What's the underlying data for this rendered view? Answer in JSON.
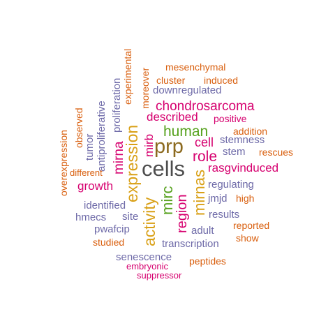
{
  "colors": {
    "gray": "#4d4d4d",
    "green": "#56a11d",
    "gold": "#d9a016",
    "brown": "#8c6a1f",
    "magenta": "#d6006f",
    "purple": "#6e6aa8",
    "orange": "#d95f0e"
  },
  "words": {
    "cells": "cells",
    "prp": "prp",
    "human": "human",
    "expression": "expression",
    "mirnas": "mirnas",
    "activity": "activity",
    "mirc": "mirc",
    "region": "region",
    "role": "role",
    "cell": "cell",
    "chondrosarcoma": "chondrosarcoma",
    "described": "described",
    "rasgvinduced": "rasgvinduced",
    "growth": "growth",
    "mirna": "mirna",
    "mirb": "mirb",
    "stemness": "stemness",
    "stem": "stem",
    "regulating": "regulating",
    "jmjd": "jmjd",
    "results": "results",
    "adult": "adult",
    "transcription": "transcription",
    "senescence": "senescence",
    "embryonic": "embryonic",
    "suppressor": "suppressor",
    "peptides": "peptides",
    "show": "show",
    "reported": "reported",
    "high": "high",
    "rescues": "rescues",
    "addition": "addition",
    "positive": "positive",
    "downregulated": "downregulated",
    "cluster": "cluster",
    "induced": "induced",
    "mesenchymal": "mesenchymal",
    "experimental": "experimental",
    "moreover": "moreover",
    "proliferation": "proliferation",
    "antiproliferative": "antiproliferative",
    "tumor": "tumor",
    "observed": "observed",
    "overexpression": "overexpression",
    "different": "different",
    "identified": "identified",
    "hmecs": "hmecs",
    "site": "site",
    "pwafcip": "pwafcip",
    "studied": "studied"
  }
}
